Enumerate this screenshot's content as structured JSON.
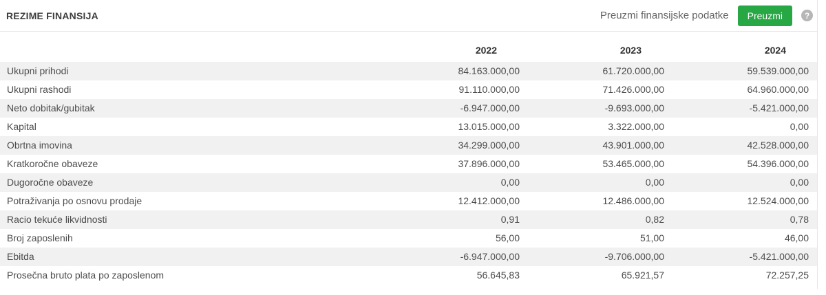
{
  "header": {
    "title": "REZIME FINANSIJA",
    "download_label": "Preuzmi finansijske podatke",
    "download_button": "Preuzmi",
    "help_icon_glyph": "?"
  },
  "colors": {
    "accent_green": "#28a745",
    "button_text": "#ffffff",
    "row_stripe": "#f1f1f1",
    "title_text": "#3e3e3e",
    "body_text": "#4c4c4c",
    "muted_text": "#646464",
    "divider": "#e4e4e4",
    "help_icon_bg": "#b6b6b6"
  },
  "table": {
    "columns": [
      "2022",
      "2023",
      "2024"
    ],
    "rows": [
      {
        "label": "Ukupni prihodi",
        "values": [
          "84.163.000,00",
          "61.720.000,00",
          "59.539.000,00"
        ]
      },
      {
        "label": "Ukupni rashodi",
        "values": [
          "91.110.000,00",
          "71.426.000,00",
          "64.960.000,00"
        ]
      },
      {
        "label": "Neto dobitak/gubitak",
        "values": [
          "-6.947.000,00",
          "-9.693.000,00",
          "-5.421.000,00"
        ]
      },
      {
        "label": "Kapital",
        "values": [
          "13.015.000,00",
          "3.322.000,00",
          "0,00"
        ]
      },
      {
        "label": "Obrtna imovina",
        "values": [
          "34.299.000,00",
          "43.901.000,00",
          "42.528.000,00"
        ]
      },
      {
        "label": "Kratkoročne obaveze",
        "values": [
          "37.896.000,00",
          "53.465.000,00",
          "54.396.000,00"
        ]
      },
      {
        "label": "Dugoročne obaveze",
        "values": [
          "0,00",
          "0,00",
          "0,00"
        ]
      },
      {
        "label": "Potraživanja po osnovu prodaje",
        "values": [
          "12.412.000,00",
          "12.486.000,00",
          "12.524.000,00"
        ]
      },
      {
        "label": "Racio tekuće likvidnosti",
        "values": [
          "0,91",
          "0,82",
          "0,78"
        ]
      },
      {
        "label": "Broj zaposlenih",
        "values": [
          "56,00",
          "51,00",
          "46,00"
        ]
      },
      {
        "label": "Ebitda",
        "values": [
          "-6.947.000,00",
          "-9.706.000,00",
          "-5.421.000,00"
        ]
      },
      {
        "label": "Prosečna bruto plata po zaposlenom",
        "values": [
          "56.645,83",
          "65.921,57",
          "72.257,25"
        ]
      }
    ]
  }
}
